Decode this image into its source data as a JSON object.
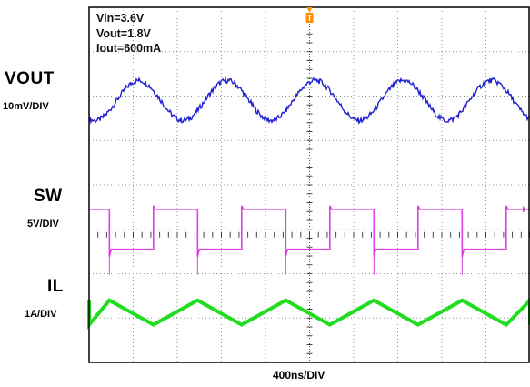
{
  "conditions": {
    "vin": "Vin=3.6V",
    "vout": "Vout=1.8V",
    "iout": "Iout=600mA"
  },
  "channels": [
    {
      "name": "VOUT",
      "scale": "10mV/DIV",
      "color": "#2020d0"
    },
    {
      "name": "SW",
      "scale": "5V/DIV",
      "color": "#e040e0"
    },
    {
      "name": "IL",
      "scale": "1A/DIV",
      "color": "#20dd20"
    }
  ],
  "timebase": "400ns/DIV",
  "trigger_marker": "T",
  "colors": {
    "grid": "#909090",
    "frame": "#000000",
    "trigger": "#ff8c00"
  },
  "chart_data": {
    "type": "line",
    "title": "",
    "xlabel": "400ns/DIV",
    "ylabel": "",
    "grid": true,
    "divisions": {
      "x": 10,
      "y": 8
    },
    "switching_cycles_on_screen": 5,
    "series": [
      {
        "name": "VOUT",
        "waveform": "sine ripple",
        "ripple_pp_div": 0.9,
        "center_div": 5.9
      },
      {
        "name": "SW",
        "waveform": "square",
        "high_div": 3.45,
        "low_div": 2.55,
        "duty": 0.5
      },
      {
        "name": "IL",
        "waveform": "triangle",
        "peak_div": 0.85,
        "valley_div": 0.3
      }
    ]
  }
}
